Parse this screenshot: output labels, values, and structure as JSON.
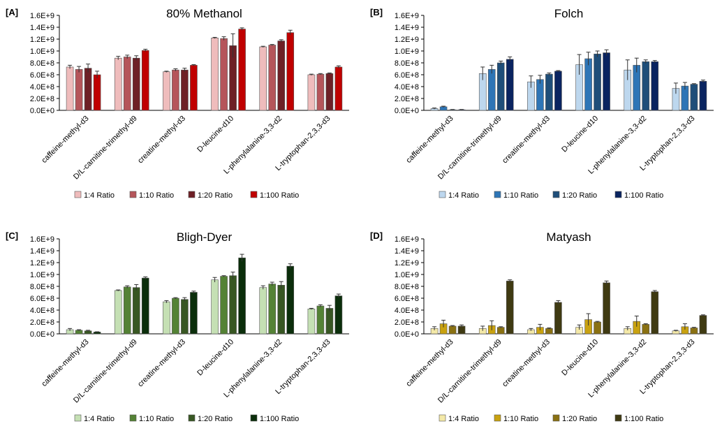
{
  "chart_data": [
    {
      "type": "bar",
      "panel_label": "[A]",
      "title": "80% Methanol",
      "categories": [
        "caffeine-methyl-d3",
        "D/L-carnitine-trimethyl-d9",
        "creatine-methyl-d3",
        "D-leucine-d10",
        "L-phenylalanine-3,3-d2",
        "L-tryptophan-2,3,3-d3"
      ],
      "yticks": [
        "0.0E+0",
        "2.0E+8",
        "4.0E+8",
        "6.0E+8",
        "8.0E+8",
        "1.0E+9",
        "1.2E+9",
        "1.4E+9",
        "1.6E+9"
      ],
      "ylim": [
        0,
        1600000000
      ],
      "legend_position": "bottom",
      "series": [
        {
          "name": "1:4 Ratio",
          "color": "#efbcbc",
          "values": [
            730000000,
            880000000,
            650000000,
            1220000000,
            1070000000,
            600000000
          ],
          "errors": [
            30000000,
            30000000,
            10000000,
            10000000,
            10000000,
            10000000
          ]
        },
        {
          "name": "1:10 Ratio",
          "color": "#b5555a",
          "values": [
            690000000,
            900000000,
            680000000,
            1210000000,
            1100000000,
            610000000
          ],
          "errors": [
            50000000,
            30000000,
            20000000,
            30000000,
            10000000,
            10000000
          ]
        },
        {
          "name": "1:20 Ratio",
          "color": "#6e2026",
          "values": [
            710000000,
            880000000,
            680000000,
            1090000000,
            1170000000,
            620000000
          ],
          "errors": [
            70000000,
            40000000,
            30000000,
            200000000,
            20000000,
            10000000
          ]
        },
        {
          "name": "1:100 Ratio",
          "color": "#c00000",
          "values": [
            600000000,
            1010000000,
            760000000,
            1370000000,
            1310000000,
            730000000
          ],
          "errors": [
            60000000,
            20000000,
            10000000,
            20000000,
            40000000,
            20000000
          ]
        }
      ]
    },
    {
      "type": "bar",
      "panel_label": "[B]",
      "title": "Folch",
      "categories": [
        "caffeine-methyl-d3",
        "D/L-carnitine-trimethyl-d9",
        "creatine-methyl-d3",
        "D-leucine-d10",
        "L-phenylalanine-3,3-d2",
        "L-tryptophan-2,3,3-d3"
      ],
      "yticks": [
        "0.0E+0",
        "2.0E+8",
        "4.0E+8",
        "6.0E+8",
        "8.0E+8",
        "1.0E+9",
        "1.2E+9",
        "1.4E+9",
        "1.6E+9"
      ],
      "ylim": [
        0,
        1600000000
      ],
      "legend_position": "bottom",
      "series": [
        {
          "name": "1:4 Ratio",
          "color": "#bdd7ee",
          "values": [
            30000000,
            620000000,
            480000000,
            770000000,
            680000000,
            370000000
          ],
          "errors": [
            10000000,
            110000000,
            100000000,
            170000000,
            170000000,
            90000000
          ]
        },
        {
          "name": "1:10 Ratio",
          "color": "#2e75b6",
          "values": [
            60000000,
            690000000,
            520000000,
            870000000,
            760000000,
            410000000
          ],
          "errors": [
            10000000,
            70000000,
            70000000,
            110000000,
            120000000,
            60000000
          ]
        },
        {
          "name": "1:20 Ratio",
          "color": "#1f4e79",
          "values": [
            10000000,
            800000000,
            610000000,
            950000000,
            820000000,
            440000000
          ],
          "errors": [
            5000000,
            30000000,
            20000000,
            50000000,
            30000000,
            10000000
          ]
        },
        {
          "name": "1:100 Ratio",
          "color": "#0a2460",
          "values": [
            10000000,
            860000000,
            660000000,
            970000000,
            820000000,
            490000000
          ],
          "errors": [
            5000000,
            40000000,
            10000000,
            50000000,
            20000000,
            20000000
          ]
        }
      ]
    },
    {
      "type": "bar",
      "panel_label": "[C]",
      "title": "Bligh-Dyer",
      "categories": [
        "caffeine-methyl-d3",
        "D/L-carnitine-trimethyl-d9",
        "creatine-methyl-d3",
        "D-leucine-d10",
        "L-phenylalanine-3,3-d2",
        "L-tryptophan-2,3,3-d3"
      ],
      "yticks": [
        "0.0E+0",
        "2.0E+8",
        "4.0E+8",
        "6.0E+8",
        "8.0E+8",
        "1.0E+9",
        "1.2E+9",
        "1.4E+9",
        "1.6E+9"
      ],
      "ylim": [
        0,
        1600000000
      ],
      "legend_position": "bottom",
      "series": [
        {
          "name": "1:4 Ratio",
          "color": "#c5e0b4",
          "values": [
            70000000,
            730000000,
            540000000,
            910000000,
            780000000,
            420000000
          ],
          "errors": [
            20000000,
            10000000,
            20000000,
            40000000,
            30000000,
            10000000
          ]
        },
        {
          "name": "1:10 Ratio",
          "color": "#548235",
          "values": [
            60000000,
            790000000,
            600000000,
            970000000,
            840000000,
            470000000
          ],
          "errors": [
            10000000,
            20000000,
            10000000,
            10000000,
            30000000,
            20000000
          ]
        },
        {
          "name": "1:20 Ratio",
          "color": "#385723",
          "values": [
            50000000,
            780000000,
            580000000,
            980000000,
            820000000,
            430000000
          ],
          "errors": [
            10000000,
            50000000,
            30000000,
            60000000,
            60000000,
            50000000
          ]
        },
        {
          "name": "1:100 Ratio",
          "color": "#0b2e0b",
          "values": [
            30000000,
            940000000,
            700000000,
            1280000000,
            1140000000,
            640000000
          ],
          "errors": [
            5000000,
            20000000,
            20000000,
            60000000,
            40000000,
            30000000
          ]
        }
      ]
    },
    {
      "type": "bar",
      "panel_label": "[D]",
      "title": "Matyash",
      "categories": [
        "caffeine-methyl-d3",
        "D/L-carnitine-trimethyl-d9",
        "creatine-methyl-d3",
        "D-leucine-d10",
        "L-phenylalanine-3,3-d2",
        "L-tryptophan-2,3,3-d3"
      ],
      "yticks": [
        "0.0E+0",
        "2.0E+8",
        "4.0E+8",
        "6.0E+8",
        "8.0E+8",
        "1.0E+9",
        "1.2E+9",
        "1.4E+9",
        "1.6E+9"
      ],
      "ylim": [
        0,
        1600000000
      ],
      "legend_position": "bottom",
      "series": [
        {
          "name": "1:4 Ratio",
          "color": "#f4e9a8",
          "values": [
            90000000,
            90000000,
            70000000,
            110000000,
            90000000,
            50000000
          ],
          "errors": [
            30000000,
            40000000,
            20000000,
            40000000,
            30000000,
            10000000
          ]
        },
        {
          "name": "1:10 Ratio",
          "color": "#c9a210",
          "values": [
            170000000,
            140000000,
            110000000,
            240000000,
            210000000,
            120000000
          ],
          "errors": [
            60000000,
            80000000,
            50000000,
            100000000,
            90000000,
            50000000
          ]
        },
        {
          "name": "1:20 Ratio",
          "color": "#8a7112",
          "values": [
            130000000,
            110000000,
            90000000,
            200000000,
            160000000,
            100000000
          ],
          "errors": [
            10000000,
            10000000,
            10000000,
            10000000,
            10000000,
            10000000
          ]
        },
        {
          "name": "1:100 Ratio",
          "color": "#3f3a12",
          "values": [
            130000000,
            890000000,
            530000000,
            860000000,
            710000000,
            310000000
          ],
          "errors": [
            20000000,
            20000000,
            30000000,
            30000000,
            20000000,
            10000000
          ]
        }
      ]
    }
  ]
}
